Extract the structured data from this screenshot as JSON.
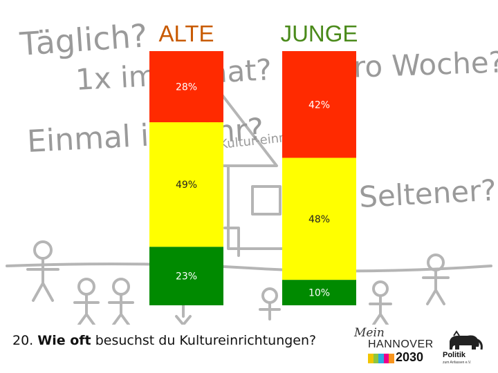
{
  "background": {
    "words": [
      "Täglich?",
      "1x im Monat?",
      "1x pro Woche?",
      "Einmal im Jahr?",
      "Seltener?",
      "Kultur-einrichtung"
    ]
  },
  "chart_data": {
    "type": "bar",
    "stacked": true,
    "categories": [
      "ALTE",
      "JUNGE"
    ],
    "series": [
      {
        "name": "",
        "color": "#ff2a00",
        "values": [
          28,
          42
        ]
      },
      {
        "name": "",
        "color": "#ffff00",
        "values": [
          49,
          48
        ]
      },
      {
        "name": "",
        "color": "#008a00",
        "values": [
          23,
          10
        ]
      }
    ],
    "unit": "%",
    "category_label_color": "#c85a00",
    "category_label_color_2": "#4a8a1a",
    "ylim": [
      0,
      100
    ]
  },
  "footer": {
    "number": "20.",
    "bold": "Wie oft",
    "rest": "besuchst du Kultureinrichtungen?"
  },
  "logo_hannover": {
    "mein": "Mein",
    "city": "HANNOVER",
    "year": "2030",
    "stripe_colors": [
      "#f2c500",
      "#8dc63f",
      "#29abe2",
      "#ec008c",
      "#f7941d"
    ]
  },
  "logo_politik": {
    "title": "Politik",
    "subtitle": "zum Anfassen e.V."
  }
}
